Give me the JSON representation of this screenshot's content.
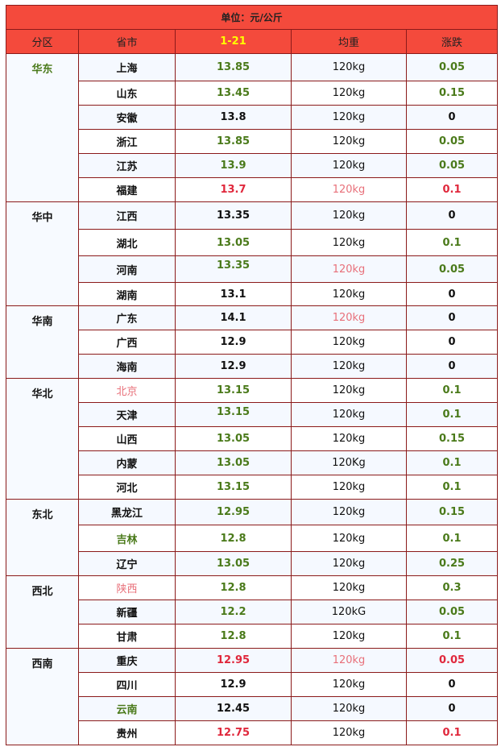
{
  "title": "单位：元/公斤",
  "headers": [
    "分区",
    "省市",
    "1-21",
    "均重",
    "涨跌"
  ],
  "colors": {
    "header_bg": "#f44a3c",
    "border": "#8b1a1a",
    "date_header": "#ffff00",
    "green": "#4a7a1a",
    "red": "#e0283c",
    "light_red": "#e8707a"
  },
  "regions": [
    {
      "name": "华东",
      "color": "g",
      "rows": [
        {
          "province": "上海",
          "pc": "k",
          "price": "13.85",
          "prc": "g",
          "weight": "120kg",
          "wc": "k",
          "change": "0.05",
          "cc": "g",
          "h": 34
        },
        {
          "province": "山东",
          "pc": "k",
          "price": "13.45",
          "prc": "g",
          "weight": "120kg",
          "wc": "k",
          "change": "0.15",
          "cc": "g",
          "h": 30
        },
        {
          "province": "安徽",
          "pc": "k",
          "price": "13.8",
          "prc": "k",
          "weight": "120kg",
          "wc": "k",
          "change": "0",
          "cc": "k",
          "h": 30
        },
        {
          "province": "浙江",
          "pc": "k",
          "price": "13.85",
          "prc": "g",
          "weight": "120kg",
          "wc": "k",
          "change": "0.05",
          "cc": "g",
          "h": 30
        },
        {
          "province": "江苏",
          "pc": "k",
          "price": "13.9",
          "prc": "g",
          "weight": "120kg",
          "wc": "k",
          "change": "0.05",
          "cc": "g",
          "h": 30
        },
        {
          "province": "福建",
          "pc": "k",
          "price": "13.7",
          "prc": "r",
          "weight": "120kg",
          "wc": "lr",
          "change": "0.1",
          "cc": "r",
          "h": 30
        }
      ]
    },
    {
      "name": "华中",
      "color": "k",
      "rows": [
        {
          "province": "江西",
          "pc": "k",
          "price": "13.35",
          "prc": "k",
          "weight": "120kg",
          "wc": "k",
          "change": "0",
          "cc": "k",
          "h": 34
        },
        {
          "province": "湖北",
          "pc": "k",
          "price": "13.05",
          "prc": "g",
          "weight": "120kg",
          "wc": "k",
          "change": "0.1",
          "cc": "g",
          "h": 33
        },
        {
          "province": "河南",
          "pc": "k",
          "price": "13.35",
          "prc": "g",
          "weight": "120kg",
          "wc": "lr",
          "change": "0.05",
          "cc": "g",
          "h": 33,
          "top": true
        },
        {
          "province": "湖南",
          "pc": "k",
          "price": "13.1",
          "prc": "k",
          "weight": "120kg",
          "wc": "k",
          "change": "0",
          "cc": "k",
          "h": 29
        }
      ]
    },
    {
      "name": "华南",
      "color": "k",
      "rows": [
        {
          "province": "广东",
          "pc": "k",
          "price": "14.1",
          "prc": "k",
          "weight": "120kg",
          "wc": "lr",
          "change": "0",
          "cc": "k",
          "h": 30
        },
        {
          "province": "广西",
          "pc": "k",
          "price": "12.9",
          "prc": "k",
          "weight": "120kg",
          "wc": "k",
          "change": "0",
          "cc": "k",
          "h": 30
        },
        {
          "province": "海南",
          "pc": "k",
          "price": "12.9",
          "prc": "k",
          "weight": "120kg",
          "wc": "k",
          "change": "0",
          "cc": "k",
          "h": 30
        }
      ]
    },
    {
      "name": "华北",
      "color": "k",
      "rows": [
        {
          "province": "北京",
          "pc": "lr",
          "price": "13.15",
          "prc": "g",
          "weight": "120kg",
          "wc": "k",
          "change": "0.1",
          "cc": "g",
          "h": 30
        },
        {
          "province": "天津",
          "pc": "k",
          "price": "13.15",
          "prc": "g",
          "weight": "120kg",
          "wc": "k",
          "change": "0.1",
          "cc": "g",
          "h": 30,
          "top": true
        },
        {
          "province": "山西",
          "pc": "k",
          "price": "13.05",
          "prc": "g",
          "weight": "120kg",
          "wc": "k",
          "change": "0.15",
          "cc": "g",
          "h": 30
        },
        {
          "province": "内蒙",
          "pc": "k",
          "price": "13.05",
          "prc": "g",
          "weight": "120Kg",
          "wc": "k",
          "change": "0.1",
          "cc": "g",
          "h": 30
        },
        {
          "province": "河北",
          "pc": "k",
          "price": "13.15",
          "prc": "g",
          "weight": "120kg",
          "wc": "k",
          "change": "0.1",
          "cc": "g",
          "h": 30
        }
      ]
    },
    {
      "name": "东北",
      "color": "k",
      "rows": [
        {
          "province": "黑龙江",
          "pc": "k",
          "price": "12.95",
          "prc": "g",
          "weight": "120kg",
          "wc": "k",
          "change": "0.15",
          "cc": "g",
          "h": 32
        },
        {
          "province": "吉林",
          "pc": "g",
          "price": "12.8",
          "prc": "g",
          "weight": "120kg",
          "wc": "k",
          "change": "0.1",
          "cc": "g",
          "h": 33
        },
        {
          "province": "辽宁",
          "pc": "k",
          "price": "13.05",
          "prc": "g",
          "weight": "120kg",
          "wc": "k",
          "change": "0.25",
          "cc": "g",
          "h": 30
        }
      ]
    },
    {
      "name": "西北",
      "color": "k",
      "rows": [
        {
          "province": "陕西",
          "pc": "lr",
          "price": "12.8",
          "prc": "g",
          "weight": "120kg",
          "wc": "k",
          "change": "0.3",
          "cc": "g",
          "h": 30
        },
        {
          "province": "新疆",
          "pc": "k",
          "price": "12.2",
          "prc": "g",
          "weight": "120kG",
          "wc": "k",
          "change": "0.05",
          "cc": "g",
          "h": 30
        },
        {
          "province": "甘肃",
          "pc": "k",
          "price": "12.8",
          "prc": "g",
          "weight": "120kg",
          "wc": "k",
          "change": "0.1",
          "cc": "g",
          "h": 30
        }
      ]
    },
    {
      "name": "西南",
      "color": "k",
      "rows": [
        {
          "province": "重庆",
          "pc": "k",
          "price": "12.95",
          "prc": "r",
          "weight": "120kg",
          "wc": "lr",
          "change": "0.05",
          "cc": "r",
          "h": 30
        },
        {
          "province": "四川",
          "pc": "k",
          "price": "12.9",
          "prc": "k",
          "weight": "120kg",
          "wc": "k",
          "change": "0",
          "cc": "k",
          "h": 30
        },
        {
          "province": "云南",
          "pc": "g",
          "price": "12.45",
          "prc": "k",
          "weight": "120kg",
          "wc": "k",
          "change": "0",
          "cc": "k",
          "h": 30
        },
        {
          "province": "贵州",
          "pc": "k",
          "price": "12.75",
          "prc": "r",
          "weight": "120kg",
          "wc": "k",
          "change": "0.1",
          "cc": "r",
          "h": 30
        }
      ]
    }
  ]
}
